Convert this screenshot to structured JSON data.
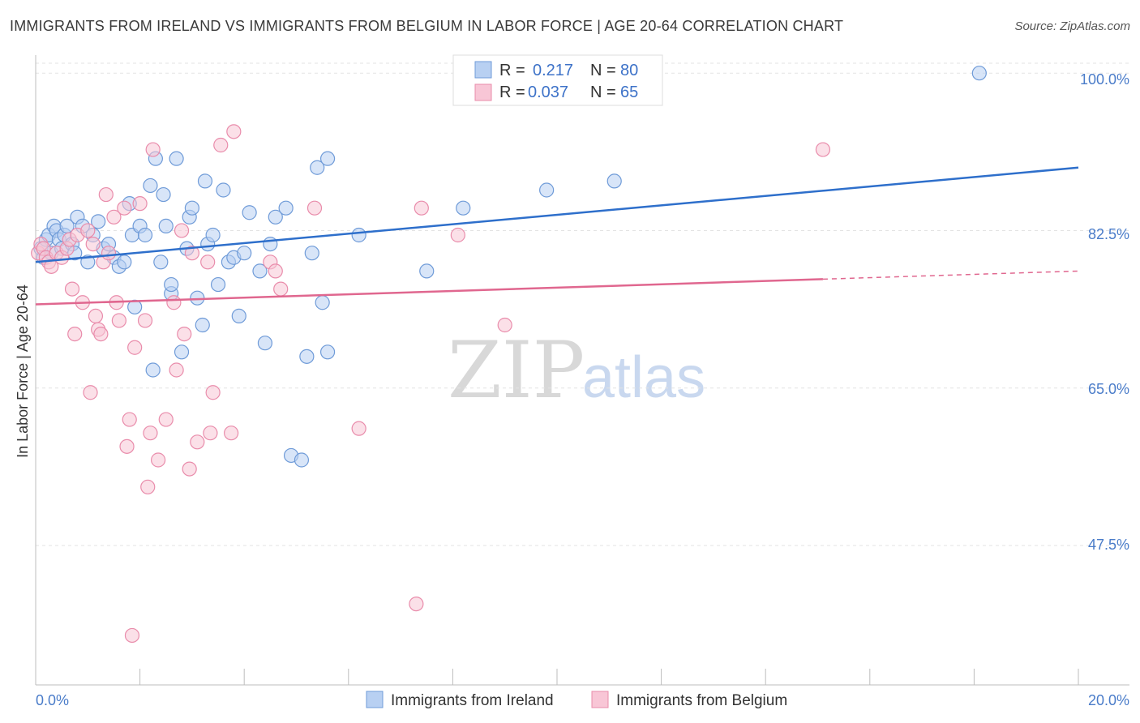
{
  "title": "IMMIGRANTS FROM IRELAND VS IMMIGRANTS FROM BELGIUM IN LABOR FORCE | AGE 20-64 CORRELATION CHART",
  "source": "Source: ZipAtlas.com",
  "watermark": {
    "zip": "ZIP",
    "atlas": "atlas"
  },
  "colors": {
    "ireland_fill": "#b8d0f2",
    "ireland_stroke": "#6f9bd8",
    "ireland_line": "#2e6fcb",
    "belgium_fill": "#f8c6d6",
    "belgium_stroke": "#e98cab",
    "belgium_line": "#e0678f"
  },
  "legend": {
    "rows": [
      {
        "r_label": "R =",
        "r_value": "0.217",
        "n_label": "N =",
        "n_value": "80"
      },
      {
        "r_label": "R =",
        "r_value": "0.037",
        "n_label": "N =",
        "n_value": "65"
      }
    ]
  },
  "bottom_legend": [
    "Immigrants from Ireland",
    "Immigrants from Belgium"
  ],
  "chart_data": {
    "type": "scatter",
    "title": "IMMIGRANTS FROM IRELAND VS IMMIGRANTS FROM BELGIUM IN LABOR FORCE | AGE 20-64 CORRELATION CHART",
    "xlabel": "",
    "ylabel": "In Labor Force | Age 20-64",
    "xlim": [
      0,
      20
    ],
    "ylim": [
      32,
      102
    ],
    "x_tick_labels": [
      "0.0%",
      "20.0%"
    ],
    "y_ticks": [
      47.5,
      65.0,
      82.5,
      100.0
    ],
    "y_tick_labels": [
      "47.5%",
      "65.0%",
      "82.5%",
      "100.0%"
    ],
    "series": [
      {
        "name": "Immigrants from Ireland",
        "trend": {
          "x0": 0,
          "y0": 79.0,
          "x1": 20,
          "y1": 89.5
        },
        "points": [
          [
            0.1,
            80.5
          ],
          [
            0.15,
            79.5
          ],
          [
            0.2,
            81.5
          ],
          [
            0.25,
            82
          ],
          [
            0.3,
            80
          ],
          [
            0.35,
            83
          ],
          [
            0.4,
            82.5
          ],
          [
            0.45,
            81.5
          ],
          [
            0.5,
            80.5
          ],
          [
            0.55,
            82
          ],
          [
            0.6,
            83
          ],
          [
            0.7,
            81
          ],
          [
            0.75,
            80
          ],
          [
            0.8,
            84
          ],
          [
            0.9,
            83
          ],
          [
            1.0,
            79
          ],
          [
            1.1,
            82
          ],
          [
            1.2,
            83.5
          ],
          [
            1.3,
            80.5
          ],
          [
            1.4,
            81
          ],
          [
            1.5,
            79.5
          ],
          [
            1.6,
            78.5
          ],
          [
            1.7,
            79
          ],
          [
            1.8,
            85.5
          ],
          [
            1.85,
            82
          ],
          [
            1.9,
            74
          ],
          [
            2.0,
            83
          ],
          [
            2.1,
            82
          ],
          [
            2.2,
            87.5
          ],
          [
            2.25,
            67
          ],
          [
            2.3,
            90.5
          ],
          [
            2.4,
            79
          ],
          [
            2.45,
            86.5
          ],
          [
            2.5,
            83
          ],
          [
            2.6,
            75.5
          ],
          [
            2.6,
            76.5
          ],
          [
            2.7,
            90.5
          ],
          [
            2.8,
            69
          ],
          [
            2.9,
            80.5
          ],
          [
            2.95,
            84
          ],
          [
            3.0,
            85
          ],
          [
            3.1,
            75
          ],
          [
            3.2,
            72
          ],
          [
            3.25,
            88
          ],
          [
            3.3,
            81
          ],
          [
            3.4,
            82
          ],
          [
            3.5,
            76.5
          ],
          [
            3.6,
            87
          ],
          [
            3.7,
            79
          ],
          [
            3.8,
            79.5
          ],
          [
            3.9,
            73
          ],
          [
            4.0,
            80
          ],
          [
            4.1,
            84.5
          ],
          [
            4.3,
            78
          ],
          [
            4.4,
            70
          ],
          [
            4.5,
            81
          ],
          [
            4.6,
            84
          ],
          [
            4.8,
            85
          ],
          [
            4.9,
            57.5
          ],
          [
            5.1,
            57
          ],
          [
            5.2,
            68.5
          ],
          [
            5.3,
            80
          ],
          [
            5.4,
            89.5
          ],
          [
            5.5,
            74.5
          ],
          [
            5.6,
            90.5
          ],
          [
            5.6,
            69
          ],
          [
            6.2,
            82
          ],
          [
            7.5,
            78
          ],
          [
            8.2,
            85
          ],
          [
            9.8,
            87
          ],
          [
            11.1,
            88
          ],
          [
            18.1,
            100
          ]
        ]
      },
      {
        "name": "Immigrants from Belgium",
        "trend": {
          "x0": 0,
          "y0": 74.3,
          "x1": 15.1,
          "y1": 77.1,
          "dashed_to_x": 20,
          "dashed_to_y": 78.0
        },
        "points": [
          [
            0.05,
            80
          ],
          [
            0.1,
            81
          ],
          [
            0.15,
            80.5
          ],
          [
            0.2,
            79.5
          ],
          [
            0.25,
            79
          ],
          [
            0.3,
            78.5
          ],
          [
            0.4,
            80
          ],
          [
            0.5,
            79.5
          ],
          [
            0.6,
            80.5
          ],
          [
            0.65,
            81.5
          ],
          [
            0.7,
            76
          ],
          [
            0.75,
            71
          ],
          [
            0.8,
            82
          ],
          [
            0.9,
            74.5
          ],
          [
            1.0,
            82.5
          ],
          [
            1.05,
            64.5
          ],
          [
            1.1,
            81
          ],
          [
            1.15,
            73
          ],
          [
            1.2,
            71.5
          ],
          [
            1.25,
            71
          ],
          [
            1.3,
            79
          ],
          [
            1.35,
            86.5
          ],
          [
            1.4,
            80
          ],
          [
            1.5,
            84
          ],
          [
            1.55,
            74.5
          ],
          [
            1.6,
            72.5
          ],
          [
            1.7,
            85
          ],
          [
            1.75,
            58.5
          ],
          [
            1.8,
            61.5
          ],
          [
            1.85,
            37.5
          ],
          [
            1.9,
            69.5
          ],
          [
            2.0,
            85.5
          ],
          [
            2.1,
            72.5
          ],
          [
            2.15,
            54
          ],
          [
            2.2,
            60
          ],
          [
            2.25,
            91.5
          ],
          [
            2.35,
            57
          ],
          [
            2.5,
            61.5
          ],
          [
            2.65,
            74.5
          ],
          [
            2.7,
            67
          ],
          [
            2.8,
            82.5
          ],
          [
            2.85,
            71
          ],
          [
            2.95,
            56
          ],
          [
            3.0,
            80
          ],
          [
            3.1,
            59
          ],
          [
            3.3,
            79
          ],
          [
            3.35,
            60
          ],
          [
            3.4,
            64.5
          ],
          [
            3.55,
            92
          ],
          [
            3.75,
            60
          ],
          [
            3.8,
            93.5
          ],
          [
            4.5,
            79
          ],
          [
            4.6,
            78
          ],
          [
            4.7,
            76
          ],
          [
            5.35,
            85
          ],
          [
            6.2,
            60.5
          ],
          [
            7.3,
            41
          ],
          [
            7.4,
            85
          ],
          [
            8.1,
            82
          ],
          [
            9.0,
            72
          ],
          [
            15.1,
            91.5
          ]
        ]
      }
    ]
  }
}
